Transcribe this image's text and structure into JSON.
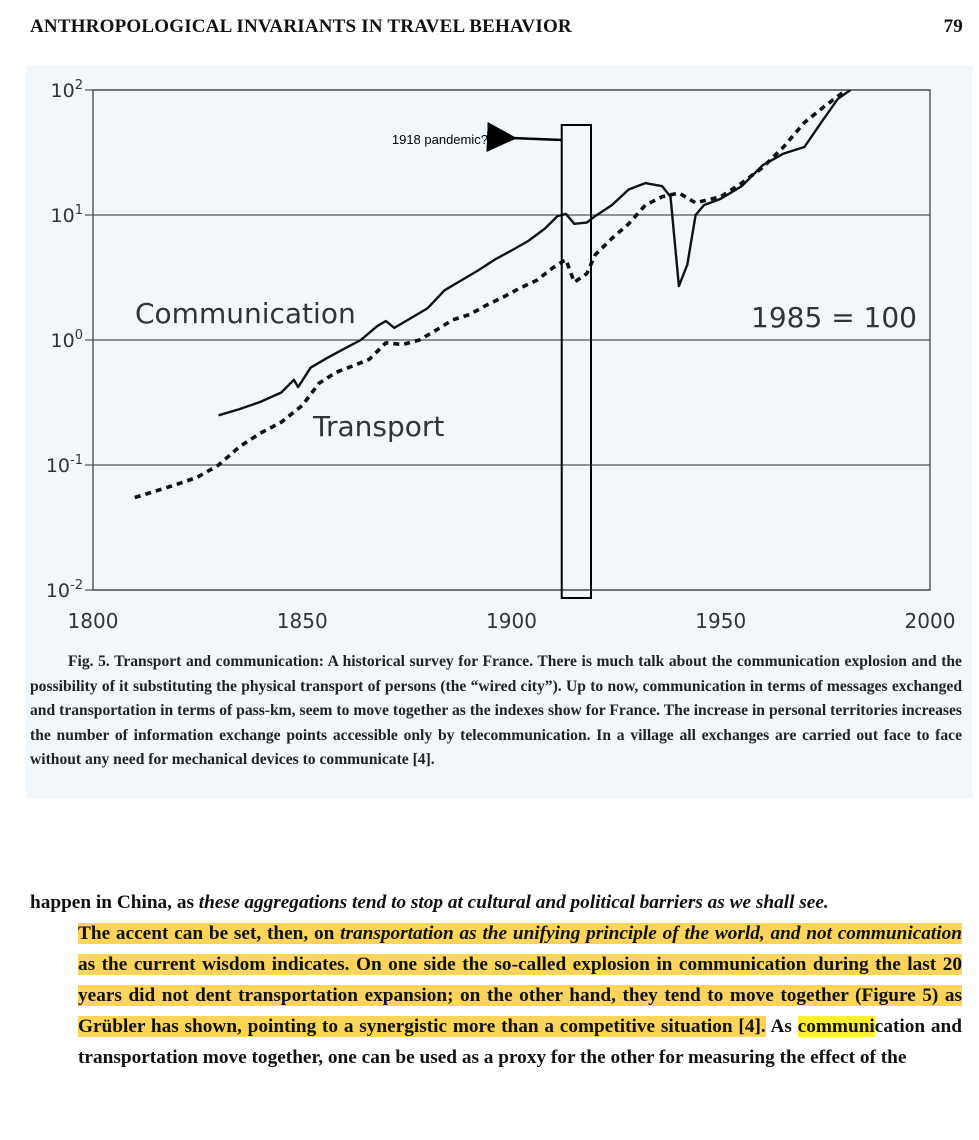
{
  "header": {
    "title": "ANTHROPOLOGICAL INVARIANTS IN TRAVEL BEHAVIOR",
    "page_number": "79"
  },
  "chart_data": {
    "type": "line",
    "title": "",
    "xlabel": "",
    "ylabel": "",
    "x_scale": "linear",
    "y_scale": "log",
    "xlim": [
      1800,
      2000
    ],
    "ylim": [
      0.01,
      100
    ],
    "x_ticks": [
      "1800",
      "1850",
      "1900",
      "1950",
      "2000"
    ],
    "y_ticks": [
      {
        "base": "10",
        "exp": "2"
      },
      {
        "base": "10",
        "exp": "1"
      },
      {
        "base": "10",
        "exp": "0"
      },
      {
        "base": "10",
        "exp": "-1"
      },
      {
        "base": "10",
        "exp": "-2"
      }
    ],
    "grid": "horizontal",
    "index_note": "1985 = 100",
    "series": [
      {
        "name": "Communication",
        "style": "solid",
        "points": [
          [
            1830,
            0.25
          ],
          [
            1835,
            0.28
          ],
          [
            1840,
            0.32
          ],
          [
            1845,
            0.38
          ],
          [
            1848,
            0.48
          ],
          [
            1849,
            0.42
          ],
          [
            1852,
            0.6
          ],
          [
            1856,
            0.72
          ],
          [
            1860,
            0.85
          ],
          [
            1864,
            1.0
          ],
          [
            1868,
            1.3
          ],
          [
            1870,
            1.42
          ],
          [
            1872,
            1.25
          ],
          [
            1876,
            1.5
          ],
          [
            1880,
            1.8
          ],
          [
            1884,
            2.5
          ],
          [
            1888,
            3.0
          ],
          [
            1892,
            3.6
          ],
          [
            1896,
            4.4
          ],
          [
            1900,
            5.2
          ],
          [
            1904,
            6.2
          ],
          [
            1908,
            7.8
          ],
          [
            1911,
            9.8
          ],
          [
            1913,
            10.2
          ],
          [
            1915,
            8.5
          ],
          [
            1918,
            8.7
          ],
          [
            1920,
            9.8
          ],
          [
            1924,
            12.0
          ],
          [
            1928,
            16.0
          ],
          [
            1932,
            18.0
          ],
          [
            1936,
            17.0
          ],
          [
            1938,
            14.0
          ],
          [
            1940,
            2.7
          ],
          [
            1942,
            4.0
          ],
          [
            1944,
            10.0
          ],
          [
            1946,
            12.0
          ],
          [
            1950,
            13.5
          ],
          [
            1955,
            17.0
          ],
          [
            1960,
            25.0
          ],
          [
            1965,
            31.0
          ],
          [
            1970,
            35.0
          ],
          [
            1974,
            55.0
          ],
          [
            1978,
            85.0
          ],
          [
            1981,
            100.0
          ]
        ]
      },
      {
        "name": "Transport",
        "style": "dotted",
        "points": [
          [
            1810,
            0.055
          ],
          [
            1815,
            0.062
          ],
          [
            1820,
            0.07
          ],
          [
            1825,
            0.08
          ],
          [
            1830,
            0.1
          ],
          [
            1835,
            0.14
          ],
          [
            1840,
            0.18
          ],
          [
            1845,
            0.22
          ],
          [
            1850,
            0.3
          ],
          [
            1854,
            0.45
          ],
          [
            1858,
            0.55
          ],
          [
            1862,
            0.62
          ],
          [
            1866,
            0.7
          ],
          [
            1870,
            0.95
          ],
          [
            1874,
            0.92
          ],
          [
            1878,
            1.0
          ],
          [
            1882,
            1.2
          ],
          [
            1886,
            1.45
          ],
          [
            1890,
            1.6
          ],
          [
            1894,
            1.9
          ],
          [
            1898,
            2.2
          ],
          [
            1902,
            2.6
          ],
          [
            1906,
            3.0
          ],
          [
            1910,
            3.8
          ],
          [
            1913,
            4.4
          ],
          [
            1915,
            2.9
          ],
          [
            1918,
            3.4
          ],
          [
            1920,
            4.8
          ],
          [
            1924,
            6.5
          ],
          [
            1928,
            8.5
          ],
          [
            1932,
            12.0
          ],
          [
            1936,
            14.0
          ],
          [
            1940,
            15.0
          ],
          [
            1944,
            12.5
          ],
          [
            1946,
            13.0
          ],
          [
            1950,
            14.0
          ],
          [
            1955,
            18.0
          ],
          [
            1960,
            24.0
          ],
          [
            1965,
            35.0
          ],
          [
            1970,
            55.0
          ],
          [
            1975,
            75.0
          ],
          [
            1980,
            100.0
          ]
        ]
      }
    ],
    "annotations": {
      "box_range": [
        1912,
        1919
      ],
      "box_label": "1918 pandemic?"
    }
  },
  "caption": {
    "fig_no": "Fig. 5.",
    "text": "Transport and communication: A historical survey for France. There is much talk about the communication explosion and the possibility of it substituting the physical transport of persons (the “wired city”). Up to now, communication in terms of messages exchanged and transportation in terms of pass-km, seem to move together as the indexes show for France. The increase in personal territories increases the number of information exchange points accessible only by telecommunication. In a village all exchanges are carried out face to face without any need for mechanical devices to communicate [4]."
  },
  "body": {
    "p1_a": "happen in China, as ",
    "p1_b": "these aggregations tend to stop at cultural and political barriers as we shall see.",
    "p2_a": "The accent can be set, then, on ",
    "p2_b": "transportation as the unifying principle of the world, and not communication",
    "p2_c": " as the current wisdom indicates. On one side the so-called explosion in communication during the last 20 years did not dent transportation expansion; on the other hand, they tend to move together (Figure 5) as Grübler has shown, pointing to a synergistic more than a competitive situation [4].",
    "p2_d": " As ",
    "p2_e": "communi",
    "p2_f": "cation and transportation move together, one can be used as a proxy for the other for measuring the effect of the"
  },
  "colors": {
    "highlight": "#fbd45a",
    "search_highlight": "#ffef33",
    "figure_background": "#f1f7fb"
  }
}
